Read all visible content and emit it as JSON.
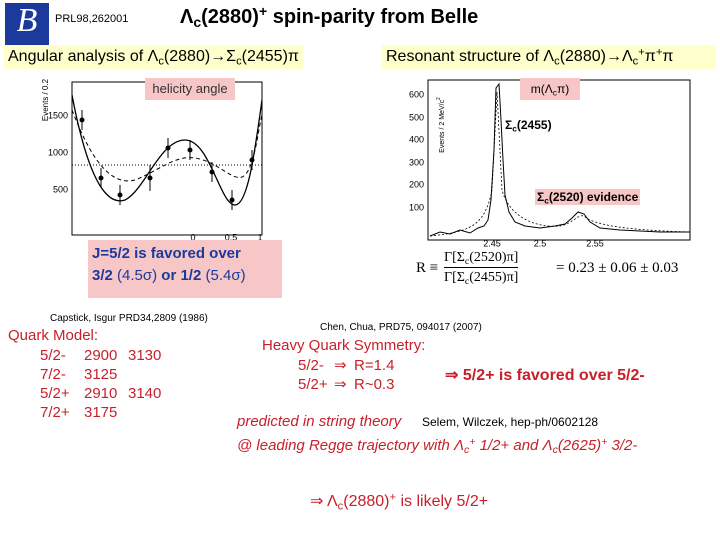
{
  "logo": "B",
  "reference": "PRL98,262001",
  "title": [
    "Λ",
    "c",
    "(2880)",
    "+",
    " spin-parity from Belle"
  ],
  "left_panel": {
    "heading": [
      "Angular analysis of Λ",
      "c",
      "(2880)→Σ",
      "c",
      "(2455)π"
    ],
    "plot": {
      "x_label": "helicity angle",
      "y_label": "Events / 0.2",
      "yticks": [
        "1500",
        "1000",
        "500"
      ],
      "xticks": [
        "0",
        "0.5",
        "1"
      ]
    },
    "conclusion": [
      "J=5/2 is favored over",
      "3/2",
      " (4.5σ) ",
      "or 1/2",
      " (5.4σ)"
    ]
  },
  "right_panel": {
    "heading": [
      "Resonant structure of Λ",
      "c",
      "(2880)→Λ",
      "c",
      "+",
      "π",
      "+",
      "π"
    ],
    "plot": {
      "x_label": [
        "m(Λ",
        "c",
        "π)"
      ],
      "y_label": [
        "Events / 2 MeV/c",
        "2"
      ],
      "yticks": [
        "600",
        "500",
        "400",
        "300",
        "200",
        "100"
      ],
      "xticks": [
        "2.45",
        "2.5",
        "2.55"
      ],
      "peak_label": [
        "Σ",
        "c",
        "(2455)"
      ],
      "evidence_label": [
        "Σ",
        "c",
        "(2520) evidence"
      ]
    },
    "ratio": {
      "lhs": "R ≡",
      "numerator": [
        "Γ[Σ",
        "c",
        "(2520)π]"
      ],
      "denominator": [
        "Γ[Σ",
        "c",
        "(2455)π]"
      ],
      "rhs": "= 0.23 ± 0.06 ± 0.03"
    }
  },
  "quark_model": {
    "citation": "Capstick, Isgur PRD34,2809 (1986)",
    "label": "Quark Model:",
    "rows": [
      [
        "5/2-",
        "2900",
        "3130"
      ],
      [
        "7/2-",
        "3125"
      ],
      [
        "5/2+",
        "2910",
        "3140"
      ],
      [
        "7/2+",
        "3175"
      ]
    ]
  },
  "heavy_quark": {
    "citation": "Chen, Chua, PRD75, 094017 (2007)",
    "label": "Heavy Quark Symmetry:",
    "rows": [
      [
        "5/2-",
        "⇒",
        "R=1.4"
      ],
      [
        "5/2+",
        "⇒",
        "R~0.3"
      ]
    ],
    "conclusion": "⇒ 5/2+ is favored over 5/2-"
  },
  "string_theory": {
    "text": "predicted in string theory",
    "citation": "Selem, Wilczek, hep-ph/0602128",
    "detail": [
      "@ leading Regge trajectory with Λ",
      "c",
      "+",
      " 1/2+ and Λ",
      "c",
      "(2625)",
      "+",
      " 3/2-"
    ]
  },
  "final": [
    "⇒ Λ",
    "c",
    "(2880)",
    "+",
    " is likely 5/2+"
  ]
}
